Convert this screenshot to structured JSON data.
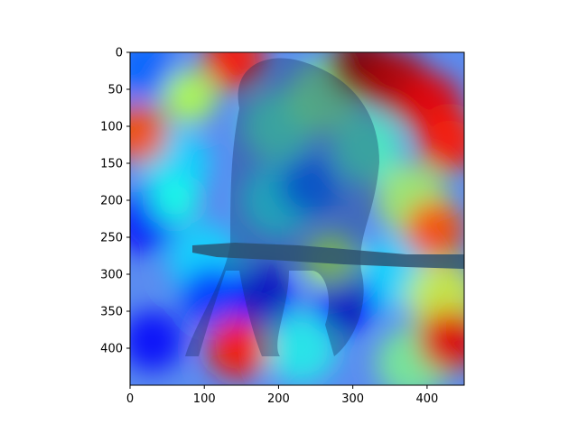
{
  "chart_data": {
    "type": "heatmap",
    "description_free": true,
    "title": "",
    "xlabel": "",
    "ylabel": "",
    "xlim": [
      0,
      450
    ],
    "ylim": [
      450,
      0
    ],
    "x_ticks": [
      0,
      100,
      200,
      300,
      400
    ],
    "y_ticks": [
      0,
      50,
      100,
      150,
      200,
      250,
      300,
      350,
      400
    ],
    "grid": false,
    "colormap": "jet",
    "hotspots": [
      {
        "x": 310,
        "y": 20,
        "intensity": 1.0
      },
      {
        "x": 360,
        "y": 40,
        "intensity": 0.95
      },
      {
        "x": 140,
        "y": 10,
        "intensity": 0.85
      },
      {
        "x": 405,
        "y": 70,
        "intensity": 0.9
      },
      {
        "x": 430,
        "y": 120,
        "intensity": 0.85
      },
      {
        "x": 410,
        "y": 240,
        "intensity": 0.8
      },
      {
        "x": 430,
        "y": 390,
        "intensity": 0.9
      },
      {
        "x": 145,
        "y": 400,
        "intensity": 0.85
      },
      {
        "x": 10,
        "y": 110,
        "intensity": 0.8
      },
      {
        "x": 80,
        "y": 60,
        "intensity": 0.55
      },
      {
        "x": 270,
        "y": 280,
        "intensity": 0.55
      },
      {
        "x": 60,
        "y": 200,
        "intensity": 0.4
      }
    ],
    "coldspots": [
      {
        "x": 20,
        "y": 230,
        "intensity": 0.0
      },
      {
        "x": 30,
        "y": 390,
        "intensity": 0.0
      },
      {
        "x": 110,
        "y": 330,
        "intensity": 0.05
      },
      {
        "x": 180,
        "y": 330,
        "intensity": 0.0
      },
      {
        "x": 290,
        "y": 340,
        "intensity": 0.0
      },
      {
        "x": 240,
        "y": 180,
        "intensity": 0.1
      },
      {
        "x": 20,
        "y": 20,
        "intensity": 0.1
      }
    ]
  }
}
